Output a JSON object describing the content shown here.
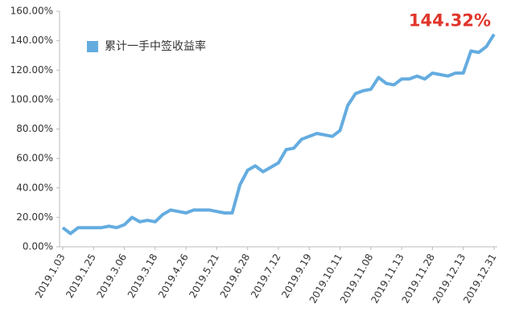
{
  "chart_data": {
    "type": "line",
    "categories": [
      "2019.1.03",
      null,
      null,
      null,
      "2019.1.25",
      null,
      null,
      null,
      "2019.3.06",
      null,
      null,
      null,
      "2019.3.18",
      null,
      null,
      null,
      "2019.4.26",
      null,
      null,
      null,
      "2019.5.21",
      null,
      null,
      null,
      "2019.6.28",
      null,
      null,
      null,
      "2019.7.12",
      null,
      null,
      null,
      "2019.9.19",
      null,
      null,
      null,
      "2019.10.11",
      null,
      null,
      null,
      "2019.11.08",
      null,
      null,
      null,
      "2019.11.13",
      null,
      null,
      null,
      "2019.11.28",
      null,
      null,
      null,
      "2019.12.13",
      null,
      null,
      null,
      "2019.12.31"
    ],
    "series": [
      {
        "name": "累计一手中签收益率",
        "color": "#64ace0",
        "values": [
          13,
          9,
          13,
          13,
          13,
          13,
          14,
          13,
          15,
          20,
          17,
          18,
          17,
          22,
          25,
          24,
          23,
          25,
          25,
          25,
          24,
          23,
          23,
          42,
          52,
          55,
          51,
          54,
          57,
          66,
          67,
          73,
          75,
          77,
          76,
          75,
          79,
          96,
          104,
          106,
          107,
          115,
          111,
          110,
          114,
          114,
          116,
          114,
          118,
          117,
          116,
          118,
          118,
          133,
          132,
          136,
          144.32
        ]
      }
    ],
    "value_labels": [
      null,
      null,
      null,
      null,
      null,
      null,
      null,
      null,
      null,
      null,
      null,
      null,
      null,
      null,
      null,
      null,
      null,
      null,
      null,
      null,
      null,
      null,
      null,
      null,
      null,
      null,
      null,
      null,
      null,
      null,
      null,
      null,
      null,
      null,
      null,
      null,
      null,
      null,
      null,
      null,
      null,
      null,
      null,
      null,
      null,
      null,
      null,
      null,
      null,
      null,
      null,
      null,
      null,
      null,
      null,
      null,
      "144.32%"
    ],
    "ylim": [
      0,
      160
    ],
    "yticks": [
      {
        "value": 0,
        "label": "0.00%"
      },
      {
        "value": 20,
        "label": "20.00%"
      },
      {
        "value": 40,
        "label": "40.00%"
      },
      {
        "value": 60,
        "label": "60.00%"
      },
      {
        "value": 80,
        "label": "80.00%"
      },
      {
        "value": 100,
        "label": "100.00%"
      },
      {
        "value": 120,
        "label": "120.00%"
      },
      {
        "value": 140,
        "label": "140.00%"
      },
      {
        "value": 160,
        "label": "160.00%"
      }
    ],
    "grid": false,
    "legend": "upper left"
  }
}
